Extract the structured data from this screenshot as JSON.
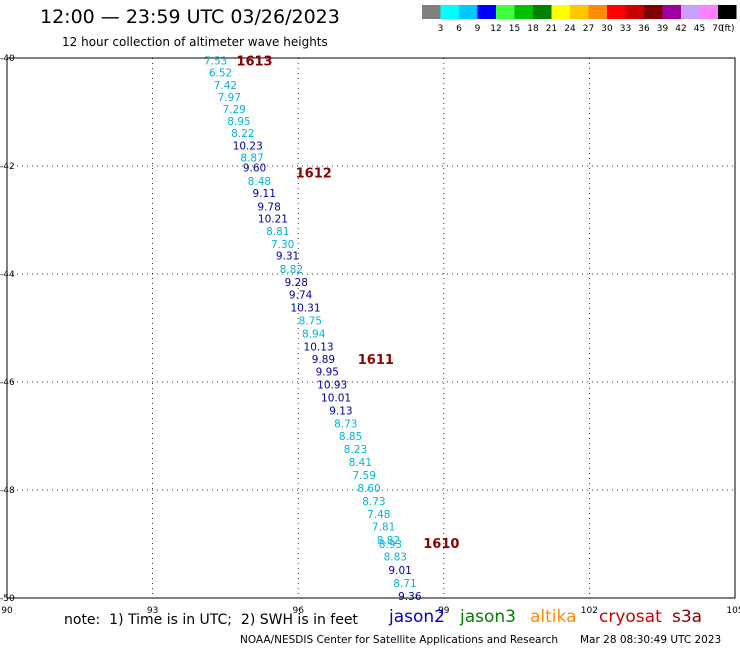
{
  "header": {
    "title": "12:00 — 23:59 UTC 03/26/2023",
    "subtitle": "12 hour collection of altimeter wave heights"
  },
  "colorbar": {
    "colors": [
      "#808080",
      "#00ffff",
      "#00c8ff",
      "#0000ff",
      "#40ff40",
      "#00c000",
      "#008000",
      "#ffff00",
      "#ffc800",
      "#ff8c00",
      "#ff0000",
      "#c80000",
      "#800000",
      "#a000a0",
      "#c8a0ff",
      "#ff80ff",
      "#000000"
    ],
    "labels": [
      "3",
      "6",
      "9",
      "12",
      "15",
      "18",
      "21",
      "24",
      "27",
      "30",
      "33",
      "36",
      "39",
      "42",
      "45",
      "70"
    ],
    "unit": "(ft)"
  },
  "footer": {
    "note": "note:  1) Time is in UTC;  2) SWH is in feet",
    "satellites": [
      {
        "name": "jason2",
        "color": "#0000cc"
      },
      {
        "name": "jason3",
        "color": "#008000"
      },
      {
        "name": "altika",
        "color": "#ff8c00"
      },
      {
        "name": "cryosat",
        "color": "#cc0000"
      },
      {
        "name": "s3a",
        "color": "#8b0000"
      }
    ],
    "credit": "NOAA/NESDIS Center for Satellite Applications and Research",
    "timestamp": "Mar 28 08:30:49 UTC 2023"
  },
  "chart_data": {
    "type": "scatter",
    "title": "12:00 — 23:59 UTC 03/26/2023",
    "subtitle": "12 hour collection of altimeter wave heights",
    "xlim": [
      90,
      105
    ],
    "ylim": [
      -50,
      -40
    ],
    "xticks": [
      90,
      93,
      96,
      99,
      102,
      105
    ],
    "yticks": [
      -40,
      -42,
      -44,
      -46,
      -48,
      -50
    ],
    "grid": true,
    "colors": {
      "light": "#00b4dc",
      "dark": "#0000a0",
      "track": "#8b0000"
    },
    "points": [
      {
        "lon": 94.3,
        "lat": -40.05,
        "swh": "7.53",
        "c": "light"
      },
      {
        "lon": 94.4,
        "lat": -40.27,
        "swh": "6.52",
        "c": "light"
      },
      {
        "lon": 94.5,
        "lat": -40.5,
        "swh": "7.42",
        "c": "light"
      },
      {
        "lon": 94.58,
        "lat": -40.72,
        "swh": "7.97",
        "c": "light"
      },
      {
        "lon": 94.68,
        "lat": -40.94,
        "swh": "7.29",
        "c": "light"
      },
      {
        "lon": 94.78,
        "lat": -41.17,
        "swh": "8.95",
        "c": "light"
      },
      {
        "lon": 94.86,
        "lat": -41.39,
        "swh": "8.22",
        "c": "light"
      },
      {
        "lon": 94.96,
        "lat": -41.62,
        "swh": "10.23",
        "c": "dark"
      },
      {
        "lon": 95.05,
        "lat": -41.84,
        "swh": "8.87",
        "c": "light"
      },
      {
        "lon": 95.1,
        "lat": -42.03,
        "swh": "9.60",
        "c": "dark"
      },
      {
        "lon": 95.2,
        "lat": -42.28,
        "swh": "8.48",
        "c": "light"
      },
      {
        "lon": 95.3,
        "lat": -42.5,
        "swh": "9.11",
        "c": "dark"
      },
      {
        "lon": 95.4,
        "lat": -42.75,
        "swh": "9.78",
        "c": "dark"
      },
      {
        "lon": 95.48,
        "lat": -42.97,
        "swh": "10.21",
        "c": "dark"
      },
      {
        "lon": 95.58,
        "lat": -43.2,
        "swh": "8.81",
        "c": "light"
      },
      {
        "lon": 95.68,
        "lat": -43.44,
        "swh": "7.30",
        "c": "light"
      },
      {
        "lon": 95.78,
        "lat": -43.66,
        "swh": "9.31",
        "c": "dark"
      },
      {
        "lon": 95.86,
        "lat": -43.91,
        "swh": "8.82",
        "c": "light"
      },
      {
        "lon": 95.96,
        "lat": -44.15,
        "swh": "9.28",
        "c": "dark"
      },
      {
        "lon": 96.05,
        "lat": -44.38,
        "swh": "9.74",
        "c": "dark"
      },
      {
        "lon": 96.15,
        "lat": -44.62,
        "swh": "10.31",
        "c": "dark"
      },
      {
        "lon": 96.25,
        "lat": -44.86,
        "swh": "8.75",
        "c": "light"
      },
      {
        "lon": 96.32,
        "lat": -45.1,
        "swh": "8.94",
        "c": "light"
      },
      {
        "lon": 96.42,
        "lat": -45.34,
        "swh": "10.13",
        "c": "dark"
      },
      {
        "lon": 96.52,
        "lat": -45.57,
        "swh": "9.89",
        "c": "dark"
      },
      {
        "lon": 96.6,
        "lat": -45.81,
        "swh": "9.95",
        "c": "dark"
      },
      {
        "lon": 96.7,
        "lat": -46.05,
        "swh": "10.93",
        "c": "dark"
      },
      {
        "lon": 96.78,
        "lat": -46.29,
        "swh": "10.01",
        "c": "dark"
      },
      {
        "lon": 96.88,
        "lat": -46.53,
        "swh": "9.13",
        "c": "dark"
      },
      {
        "lon": 96.98,
        "lat": -46.77,
        "swh": "8.73",
        "c": "light"
      },
      {
        "lon": 97.08,
        "lat": -47.0,
        "swh": "8.85",
        "c": "light"
      },
      {
        "lon": 97.18,
        "lat": -47.24,
        "swh": "8.23",
        "c": "light"
      },
      {
        "lon": 97.28,
        "lat": -47.48,
        "swh": "8.41",
        "c": "light"
      },
      {
        "lon": 97.36,
        "lat": -47.72,
        "swh": "7.59",
        "c": "light"
      },
      {
        "lon": 97.46,
        "lat": -47.96,
        "swh": "8.60",
        "c": "light"
      },
      {
        "lon": 97.56,
        "lat": -48.2,
        "swh": "8.73",
        "c": "light"
      },
      {
        "lon": 97.66,
        "lat": -48.44,
        "swh": "7.48",
        "c": "light"
      },
      {
        "lon": 97.76,
        "lat": -48.68,
        "swh": "7.81",
        "c": "light"
      },
      {
        "lon": 97.86,
        "lat": -48.93,
        "swh": "8.82",
        "c": "light"
      },
      {
        "lon": 97.9,
        "lat": -49.0,
        "swh": "8.93",
        "c": "light"
      },
      {
        "lon": 98.0,
        "lat": -49.23,
        "swh": "8.83",
        "c": "light"
      },
      {
        "lon": 98.1,
        "lat": -49.48,
        "swh": "9.01",
        "c": "dark"
      },
      {
        "lon": 98.2,
        "lat": -49.72,
        "swh": "8.71",
        "c": "light"
      },
      {
        "lon": 98.3,
        "lat": -49.96,
        "swh": "9.36",
        "c": "dark"
      }
    ],
    "track_labels": [
      {
        "lon": 95.1,
        "lat": -40.05,
        "label": "1613"
      },
      {
        "lon": 96.32,
        "lat": -42.12,
        "label": "1612"
      },
      {
        "lon": 97.6,
        "lat": -45.57,
        "label": "1611"
      },
      {
        "lon": 98.95,
        "lat": -48.98,
        "label": "1610"
      }
    ]
  }
}
